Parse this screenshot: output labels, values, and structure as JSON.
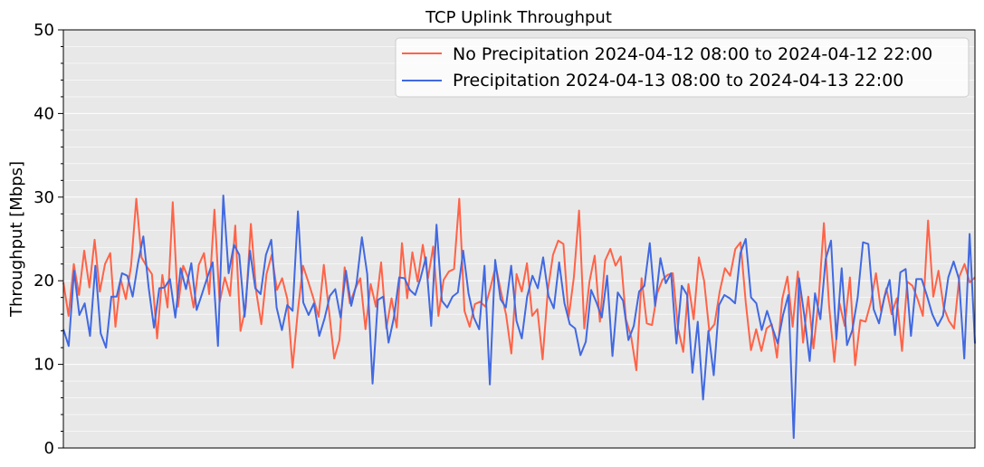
{
  "chart_data": {
    "type": "line",
    "title": "TCP Uplink Throughput",
    "xlabel": "",
    "ylabel": "Throughput [Mbps]",
    "ylim": [
      0,
      50
    ],
    "yticks": [
      0,
      10,
      20,
      30,
      40,
      50
    ],
    "y_minor_step": 2,
    "grid": "y-major-and-minor",
    "xaxis_ticks_visible": false,
    "legend_position": "upper right",
    "series": [
      {
        "name": "No Precipitation 2024-04-12 08:00 to 2024-04-12 22:00",
        "color": "#ff6347",
        "values": [
          19.8,
          15.8,
          22.0,
          18.3,
          23.6,
          19.2,
          24.9,
          18.7,
          22.0,
          23.3,
          14.5,
          20.2,
          17.8,
          21.8,
          29.8,
          22.8,
          21.7,
          20.8,
          13.1,
          20.7,
          16.8,
          29.4,
          16.9,
          21.8,
          20.3,
          16.8,
          21.9,
          23.3,
          18.4,
          28.5,
          17.4,
          20.4,
          18.2,
          26.6,
          14.0,
          16.8,
          26.8,
          18.8,
          14.8,
          20.8,
          23.1,
          18.9,
          20.3,
          17.8,
          9.6,
          16.3,
          21.8,
          19.9,
          17.9,
          15.7,
          21.9,
          16.4,
          10.7,
          12.9,
          21.6,
          17.3,
          19.0,
          20.3,
          14.2,
          19.6,
          16.9,
          22.2,
          14.3,
          17.9,
          14.4,
          24.5,
          17.9,
          23.4,
          19.9,
          24.3,
          20.3,
          24.1,
          15.8,
          20.1,
          21.1,
          21.4,
          29.8,
          16.4,
          14.5,
          17.2,
          17.5,
          16.9,
          19.2,
          21.8,
          18.7,
          15.9,
          11.3,
          20.8,
          18.7,
          22.1,
          15.8,
          16.6,
          10.6,
          18.8,
          23.1,
          24.8,
          24.4,
          15.6,
          20.4,
          28.4,
          14.3,
          19.9,
          23.0,
          15.1,
          22.4,
          23.8,
          21.8,
          22.9,
          15.4,
          13.3,
          9.3,
          20.3,
          14.9,
          14.7,
          18.5,
          20.1,
          20.7,
          20.9,
          14.3,
          11.5,
          19.6,
          15.4,
          22.8,
          20.0,
          14.0,
          14.8,
          18.7,
          21.5,
          20.6,
          23.8,
          24.6,
          17.4,
          11.7,
          14.2,
          11.6,
          14.3,
          14.8,
          10.8,
          17.8,
          20.5,
          14.5,
          21.1,
          12.6,
          18.1,
          11.9,
          17.8,
          26.9,
          17.0,
          10.3,
          17.3,
          14.6,
          20.4,
          9.9,
          15.3,
          15.1,
          17.4,
          20.9,
          16.3,
          19.1,
          16.0,
          17.9,
          11.6,
          19.9,
          19.4,
          17.8,
          15.8,
          27.2,
          18.1,
          21.2,
          16.8,
          15.2,
          14.3,
          20.5,
          22.0,
          19.8,
          20.4
        ]
      },
      {
        "name": "Precipitation 2024-04-13 08:00 to 2024-04-13 22:00",
        "color": "#4169e1",
        "values": [
          14.2,
          12.2,
          21.2,
          15.9,
          17.3,
          13.4,
          21.8,
          13.7,
          12.0,
          18.1,
          18.1,
          20.9,
          20.6,
          18.1,
          22.1,
          25.3,
          19.2,
          14.4,
          19.1,
          19.2,
          20.2,
          15.6,
          21.5,
          19.0,
          22.1,
          16.5,
          18.4,
          20.4,
          22.2,
          12.2,
          30.2,
          20.9,
          24.3,
          23.1,
          15.7,
          23.6,
          19.1,
          18.4,
          23.1,
          24.9,
          16.8,
          14.1,
          17.1,
          16.4,
          28.3,
          17.4,
          15.9,
          17.3,
          13.4,
          15.5,
          18.2,
          19.0,
          15.6,
          21.2,
          17.0,
          19.7,
          25.2,
          20.8,
          7.7,
          17.7,
          18.1,
          12.6,
          15.6,
          20.4,
          20.3,
          18.9,
          18.3,
          20.3,
          22.8,
          14.6,
          26.7,
          17.6,
          16.8,
          18.1,
          18.6,
          23.6,
          18.5,
          15.6,
          14.2,
          21.8,
          7.6,
          22.5,
          17.8,
          16.8,
          21.8,
          15.2,
          13.1,
          18.1,
          20.6,
          19.1,
          22.8,
          18.2,
          16.7,
          22.2,
          17.3,
          14.8,
          14.3,
          11.1,
          12.7,
          18.9,
          17.4,
          15.6,
          20.6,
          11.0,
          18.6,
          17.6,
          12.9,
          14.6,
          18.7,
          19.4,
          24.5,
          17.0,
          22.7,
          19.7,
          20.9,
          12.5,
          19.4,
          18.3,
          9.0,
          15.1,
          5.8,
          14.0,
          8.7,
          17.1,
          18.3,
          17.9,
          17.3,
          23.3,
          25.0,
          18.0,
          17.3,
          14.1,
          16.4,
          14.4,
          12.5,
          15.9,
          18.3,
          1.2,
          20.3,
          15.8,
          10.4,
          18.5,
          15.4,
          22.6,
          24.8,
          13.0,
          21.5,
          12.3,
          14.1,
          18.0,
          24.6,
          24.4,
          16.6,
          14.9,
          18.0,
          20.1,
          13.5,
          21.0,
          21.4,
          13.4,
          20.2,
          20.2,
          18.2,
          16.0,
          14.6,
          15.8,
          20.4,
          22.3,
          20.2,
          10.7,
          25.6,
          12.5
        ]
      }
    ]
  },
  "colors": {
    "plot_background": "#e8e8e8",
    "grid": "#ffffff"
  }
}
